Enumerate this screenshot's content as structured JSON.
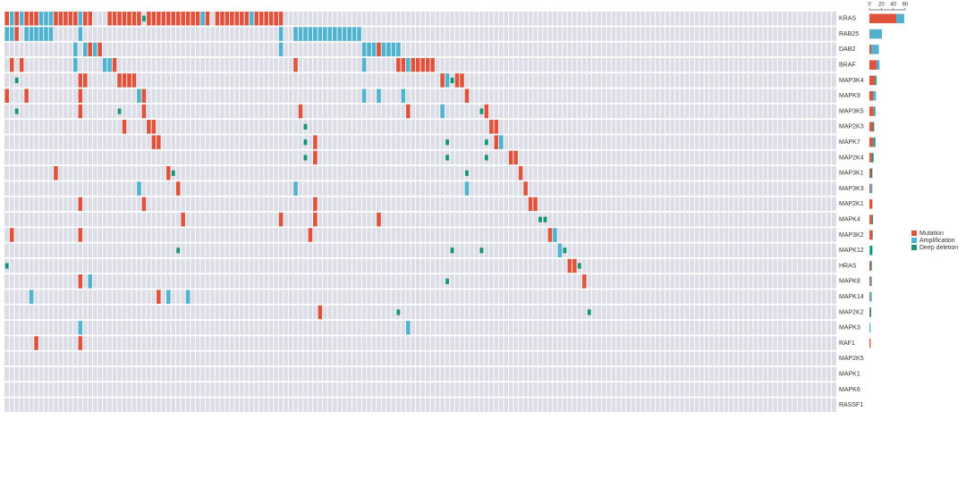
{
  "chart_data": {
    "type": "oncoprint",
    "genes": [
      "KRAS",
      "RAB25",
      "DAB2",
      "BRAF",
      "MAP3K4",
      "MAPK9",
      "MAP3K5",
      "MAP2K3",
      "MAPK7",
      "MAP2K4",
      "MAP3K1",
      "MAP3K3",
      "MAP2K1",
      "MAPK4",
      "MAP3K2",
      "MAPK12",
      "HRAS",
      "MAPK8",
      "MAPK14",
      "MAP2K2",
      "MAPK3",
      "RAF1",
      "MAP2K5",
      "MAPK1",
      "MAPK6",
      "RASSF1"
    ],
    "xlim": [
      0,
      170
    ],
    "series": [
      {
        "name": "Mutation",
        "color": "#e0523c",
        "values": [
          45,
          1,
          3,
          12,
          9,
          6,
          7,
          6,
          6,
          4,
          3,
          2,
          5,
          4,
          5,
          0,
          2,
          2,
          1,
          1,
          0,
          2,
          0,
          0,
          0,
          0
        ]
      },
      {
        "name": "Amplification",
        "color": "#4fb3cf",
        "values": [
          12,
          20,
          13,
          5,
          1,
          5,
          1,
          0,
          1,
          0,
          0,
          3,
          0,
          0,
          1,
          1,
          0,
          1,
          3,
          0,
          2,
          0,
          0,
          0,
          0,
          0
        ]
      },
      {
        "name": "Deep deletion",
        "color": "#15947a",
        "values": [
          1,
          0,
          0,
          0,
          2,
          0,
          2,
          2,
          3,
          3,
          2,
          0,
          0,
          2,
          0,
          4,
          2,
          1,
          0,
          2,
          0,
          0,
          0,
          0,
          0,
          0
        ]
      }
    ],
    "count_xlim": [
      0,
      60
    ],
    "count_xticks": [
      0,
      20,
      40,
      60
    ],
    "alterations": [
      [
        [
          0,
          0
        ],
        [
          1,
          1
        ],
        [
          2,
          0
        ],
        [
          3,
          1
        ],
        [
          4,
          0
        ],
        [
          5,
          0
        ],
        [
          6,
          0
        ],
        [
          7,
          1
        ],
        [
          8,
          1
        ],
        [
          9,
          1
        ],
        [
          10,
          0
        ],
        [
          11,
          0
        ],
        [
          12,
          0
        ],
        [
          13,
          0
        ],
        [
          14,
          0
        ],
        [
          15,
          1
        ],
        [
          16,
          0
        ],
        [
          17,
          0
        ],
        [
          21,
          0
        ],
        [
          22,
          0
        ],
        [
          23,
          0
        ],
        [
          24,
          0
        ],
        [
          25,
          0
        ],
        [
          26,
          0
        ],
        [
          27,
          0
        ],
        [
          28,
          2
        ],
        [
          29,
          0
        ],
        [
          30,
          0
        ],
        [
          31,
          0
        ],
        [
          32,
          0
        ],
        [
          33,
          0
        ],
        [
          34,
          0
        ],
        [
          35,
          0
        ],
        [
          36,
          0
        ],
        [
          37,
          0
        ],
        [
          38,
          0
        ],
        [
          39,
          0
        ],
        [
          40,
          1
        ],
        [
          41,
          0
        ],
        [
          43,
          0
        ],
        [
          44,
          0
        ],
        [
          45,
          0
        ],
        [
          46,
          0
        ],
        [
          47,
          0
        ],
        [
          48,
          0
        ],
        [
          49,
          0
        ],
        [
          50,
          1
        ],
        [
          51,
          0
        ],
        [
          52,
          0
        ],
        [
          53,
          0
        ],
        [
          54,
          0
        ],
        [
          55,
          0
        ],
        [
          56,
          0
        ]
      ],
      [
        [
          0,
          1
        ],
        [
          1,
          1
        ],
        [
          2,
          0
        ],
        [
          4,
          1
        ],
        [
          5,
          1
        ],
        [
          6,
          1
        ],
        [
          7,
          1
        ],
        [
          8,
          1
        ],
        [
          9,
          1
        ],
        [
          15,
          1
        ],
        [
          56,
          1
        ],
        [
          59,
          1
        ],
        [
          60,
          1
        ],
        [
          61,
          1
        ],
        [
          62,
          1
        ],
        [
          63,
          1
        ],
        [
          64,
          1
        ],
        [
          65,
          1
        ],
        [
          66,
          1
        ],
        [
          67,
          1
        ],
        [
          68,
          1
        ],
        [
          69,
          1
        ],
        [
          70,
          1
        ],
        [
          71,
          1
        ],
        [
          72,
          1
        ]
      ],
      [
        [
          14,
          1
        ],
        [
          16,
          1
        ],
        [
          17,
          0
        ],
        [
          18,
          1
        ],
        [
          19,
          0
        ],
        [
          56,
          1
        ],
        [
          73,
          1
        ],
        [
          74,
          1
        ],
        [
          75,
          1
        ],
        [
          76,
          0
        ],
        [
          77,
          1
        ],
        [
          78,
          1
        ],
        [
          79,
          1
        ],
        [
          80,
          1
        ]
      ],
      [
        [
          1,
          0
        ],
        [
          3,
          0
        ],
        [
          14,
          1
        ],
        [
          20,
          1
        ],
        [
          21,
          1
        ],
        [
          22,
          0
        ],
        [
          59,
          0
        ],
        [
          73,
          1
        ],
        [
          80,
          0
        ],
        [
          81,
          0
        ],
        [
          82,
          1
        ],
        [
          83,
          0
        ],
        [
          84,
          0
        ],
        [
          85,
          0
        ],
        [
          86,
          0
        ],
        [
          87,
          0
        ]
      ],
      [
        [
          2,
          2
        ],
        [
          15,
          0
        ],
        [
          16,
          0
        ],
        [
          23,
          0
        ],
        [
          24,
          0
        ],
        [
          25,
          0
        ],
        [
          26,
          0
        ],
        [
          89,
          0
        ],
        [
          90,
          1
        ],
        [
          91,
          2
        ],
        [
          92,
          0
        ],
        [
          93,
          0
        ]
      ],
      [
        [
          0,
          0
        ],
        [
          4,
          0
        ],
        [
          15,
          0
        ],
        [
          27,
          1
        ],
        [
          28,
          0
        ],
        [
          73,
          1
        ],
        [
          76,
          1
        ],
        [
          81,
          1
        ],
        [
          94,
          0
        ]
      ],
      [
        [
          2,
          2
        ],
        [
          15,
          0
        ],
        [
          23,
          2
        ],
        [
          28,
          0
        ],
        [
          60,
          0
        ],
        [
          82,
          0
        ],
        [
          89,
          1
        ],
        [
          97,
          2
        ],
        [
          98,
          0
        ]
      ],
      [
        [
          24,
          0
        ],
        [
          29,
          0
        ],
        [
          30,
          0
        ],
        [
          61,
          2
        ],
        [
          99,
          0
        ],
        [
          100,
          0
        ]
      ],
      [
        [
          30,
          0
        ],
        [
          31,
          0
        ],
        [
          61,
          2
        ],
        [
          63,
          0
        ],
        [
          90,
          2
        ],
        [
          98,
          2
        ],
        [
          100,
          0
        ],
        [
          101,
          1
        ]
      ],
      [
        [
          61,
          2
        ],
        [
          63,
          0
        ],
        [
          90,
          2
        ],
        [
          98,
          2
        ],
        [
          103,
          0
        ],
        [
          104,
          0
        ]
      ],
      [
        [
          10,
          0
        ],
        [
          33,
          0
        ],
        [
          34,
          2
        ],
        [
          94,
          2
        ],
        [
          105,
          0
        ]
      ],
      [
        [
          27,
          1
        ],
        [
          35,
          0
        ],
        [
          59,
          1
        ],
        [
          94,
          1
        ],
        [
          106,
          0
        ]
      ],
      [
        [
          15,
          0
        ],
        [
          28,
          0
        ],
        [
          63,
          0
        ],
        [
          107,
          0
        ],
        [
          108,
          0
        ]
      ],
      [
        [
          36,
          0
        ],
        [
          56,
          0
        ],
        [
          63,
          0
        ],
        [
          76,
          0
        ],
        [
          109,
          2
        ],
        [
          110,
          2
        ]
      ],
      [
        [
          1,
          0
        ],
        [
          15,
          0
        ],
        [
          62,
          0
        ],
        [
          111,
          0
        ],
        [
          112,
          1
        ]
      ],
      [
        [
          35,
          2
        ],
        [
          91,
          2
        ],
        [
          97,
          2
        ],
        [
          113,
          1
        ],
        [
          114,
          2
        ]
      ],
      [
        [
          0,
          2
        ],
        [
          115,
          0
        ],
        [
          116,
          0
        ],
        [
          117,
          2
        ]
      ],
      [
        [
          15,
          0
        ],
        [
          17,
          1
        ],
        [
          90,
          2
        ],
        [
          118,
          0
        ]
      ],
      [
        [
          5,
          1
        ],
        [
          31,
          0
        ],
        [
          33,
          1
        ],
        [
          37,
          1
        ]
      ],
      [
        [
          64,
          0
        ],
        [
          80,
          2
        ],
        [
          119,
          2
        ]
      ],
      [
        [
          15,
          1
        ],
        [
          82,
          1
        ]
      ],
      [
        [
          6,
          0
        ],
        [
          15,
          0
        ]
      ],
      [],
      [],
      [],
      []
    ]
  }
}
